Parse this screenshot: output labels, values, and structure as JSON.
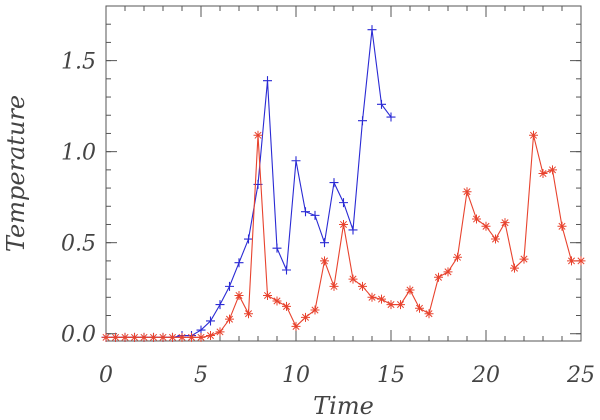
{
  "chart_data": {
    "type": "line",
    "title": "",
    "xlabel": "Time",
    "ylabel": "Temperature",
    "xlim": [
      0,
      25
    ],
    "ylim": [
      -0.04,
      1.8
    ],
    "x_ticks": [
      {
        "value": 0,
        "label": "0"
      },
      {
        "value": 5,
        "label": "5"
      },
      {
        "value": 10,
        "label": "10"
      },
      {
        "value": 15,
        "label": "15"
      },
      {
        "value": 20,
        "label": "20"
      },
      {
        "value": 25,
        "label": "25"
      }
    ],
    "y_ticks": [
      {
        "value": 0.0,
        "label": "0.0"
      },
      {
        "value": 0.5,
        "label": "0.5"
      },
      {
        "value": 1.0,
        "label": "1.0"
      },
      {
        "value": 1.5,
        "label": "1.5"
      }
    ],
    "x_minor_step": 1,
    "y_minor_step": 0.1,
    "grid": false,
    "legend": "none",
    "series": [
      {
        "color": "#2a2ad4",
        "marker": "plus",
        "points": [
          [
            0,
            -0.02
          ],
          [
            0.5,
            -0.02
          ],
          [
            1,
            -0.02
          ],
          [
            1.5,
            -0.02
          ],
          [
            2,
            -0.02
          ],
          [
            2.5,
            -0.02
          ],
          [
            3,
            -0.02
          ],
          [
            3.5,
            -0.02
          ],
          [
            4,
            -0.01
          ],
          [
            4.5,
            -0.01
          ],
          [
            5,
            0.02
          ],
          [
            5.5,
            0.07
          ],
          [
            6,
            0.16
          ],
          [
            6.5,
            0.26
          ],
          [
            7,
            0.39
          ],
          [
            7.5,
            0.52
          ],
          [
            8,
            0.82
          ],
          [
            8.5,
            1.39
          ],
          [
            9,
            0.47
          ],
          [
            9.5,
            0.35
          ],
          [
            10,
            0.95
          ],
          [
            10.5,
            0.67
          ],
          [
            11,
            0.65
          ],
          [
            11.5,
            0.5
          ],
          [
            12,
            0.83
          ],
          [
            12.5,
            0.72
          ],
          [
            13,
            0.57
          ],
          [
            13.5,
            1.17
          ],
          [
            14,
            1.67
          ],
          [
            14.5,
            1.26
          ],
          [
            15,
            1.19
          ]
        ]
      },
      {
        "color": "#e8432e",
        "marker": "asterisk",
        "points": [
          [
            0,
            -0.02
          ],
          [
            0.5,
            -0.02
          ],
          [
            1,
            -0.02
          ],
          [
            1.5,
            -0.02
          ],
          [
            2,
            -0.02
          ],
          [
            2.5,
            -0.02
          ],
          [
            3,
            -0.02
          ],
          [
            3.5,
            -0.02
          ],
          [
            4,
            -0.02
          ],
          [
            4.5,
            -0.02
          ],
          [
            5,
            -0.02
          ],
          [
            5.5,
            -0.01
          ],
          [
            6,
            0.01
          ],
          [
            6.5,
            0.08
          ],
          [
            7,
            0.21
          ],
          [
            7.5,
            0.11
          ],
          [
            8,
            1.09
          ],
          [
            8.5,
            0.21
          ],
          [
            9,
            0.18
          ],
          [
            9.5,
            0.15
          ],
          [
            10,
            0.04
          ],
          [
            10.5,
            0.09
          ],
          [
            11,
            0.13
          ],
          [
            11.5,
            0.4
          ],
          [
            12,
            0.26
          ],
          [
            12.5,
            0.6
          ],
          [
            13,
            0.3
          ],
          [
            13.5,
            0.26
          ],
          [
            14,
            0.2
          ],
          [
            14.5,
            0.19
          ],
          [
            15,
            0.16
          ],
          [
            15.5,
            0.16
          ],
          [
            16,
            0.24
          ],
          [
            16.5,
            0.14
          ],
          [
            17,
            0.11
          ],
          [
            17.5,
            0.31
          ],
          [
            18,
            0.34
          ],
          [
            18.5,
            0.42
          ],
          [
            19,
            0.78
          ],
          [
            19.5,
            0.63
          ],
          [
            20,
            0.59
          ],
          [
            20.5,
            0.52
          ],
          [
            21,
            0.61
          ],
          [
            21.5,
            0.36
          ],
          [
            22,
            0.41
          ],
          [
            22.5,
            1.09
          ],
          [
            23,
            0.88
          ],
          [
            23.5,
            0.9
          ],
          [
            24,
            0.59
          ],
          [
            24.5,
            0.4
          ],
          [
            25,
            0.4
          ]
        ]
      }
    ]
  }
}
